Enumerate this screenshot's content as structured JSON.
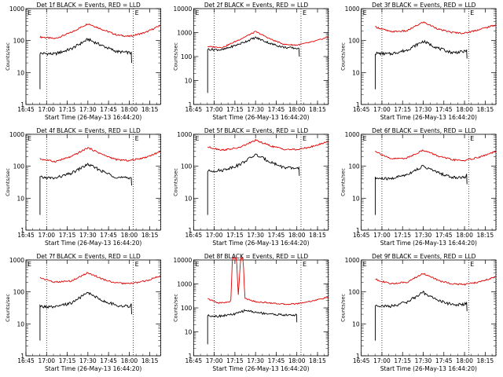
{
  "colors": {
    "events": "#000000",
    "lld": "#e00000",
    "axis": "#000000"
  },
  "chart_data": [
    {
      "type": "line",
      "title": "Det 1f BLACK = Events, RED = LLD",
      "xlabel": "Start Time (26-May-13 16:44:20)",
      "ylabel": "Counts/sec",
      "yscale": "log",
      "ylim": [
        1,
        1000
      ],
      "ytick_labels": [
        "1",
        "10",
        "100",
        "1000"
      ],
      "xtick_labels": [
        "16:45",
        "17:00",
        "17:15",
        "17:30",
        "17:45",
        "18:00",
        "18:15"
      ],
      "xlim_minutes": [
        16.75,
        18.38
      ],
      "marker_lines": [
        "17:00",
        "18:03",
        "18:23"
      ],
      "marker_label": "E",
      "series": [
        {
          "name": "LLD",
          "x": [
            16.92,
            17.1,
            17.3,
            17.5,
            17.7,
            17.85,
            18.0,
            18.2,
            18.38
          ],
          "values": [
            130,
            115,
            180,
            340,
            210,
            150,
            135,
            180,
            300
          ]
        },
        {
          "name": "Events",
          "x": [
            16.92,
            17.1,
            17.3,
            17.5,
            17.7,
            17.85,
            18.0,
            18.03
          ],
          "values": [
            40,
            38,
            55,
            110,
            65,
            45,
            42,
            40
          ]
        }
      ]
    },
    {
      "type": "line",
      "title": "Det 2f BLACK = Events, RED = LLD",
      "xlabel": "Start Time (26-May-13 16:44:20)",
      "ylabel": "Counts/sec",
      "yscale": "log",
      "ylim": [
        1,
        10000
      ],
      "ytick_labels": [
        "1",
        "10",
        "100",
        "1000",
        "10000"
      ],
      "xtick_labels": [
        "16:45",
        "17:00",
        "17:15",
        "17:30",
        "17:45",
        "18:00",
        "18:15"
      ],
      "xlim_minutes": [
        16.75,
        18.38
      ],
      "marker_lines": [
        "17:00",
        "18:03",
        "18:23"
      ],
      "marker_label": "E",
      "series": [
        {
          "name": "LLD",
          "x": [
            16.92,
            17.1,
            17.3,
            17.5,
            17.7,
            17.85,
            18.0,
            18.2,
            18.38
          ],
          "values": [
            260,
            240,
            500,
            1100,
            500,
            320,
            300,
            420,
            650
          ]
        },
        {
          "name": "Events",
          "x": [
            16.92,
            17.1,
            17.3,
            17.5,
            17.7,
            17.85,
            18.0,
            18.03
          ],
          "values": [
            200,
            190,
            330,
            620,
            330,
            240,
            220,
            200
          ]
        }
      ]
    },
    {
      "type": "line",
      "title": "Det 3f BLACK = Events, RED = LLD",
      "xlabel": "Start Time (26-May-13 16:44:20)",
      "ylabel": "Counts/sec",
      "yscale": "log",
      "ylim": [
        1,
        1000
      ],
      "ytick_labels": [
        "1",
        "10",
        "100",
        "1000"
      ],
      "xtick_labels": [
        "16:45",
        "17:00",
        "17:15",
        "17:30",
        "17:45",
        "18:00",
        "18:15"
      ],
      "xlim_minutes": [
        16.75,
        18.38
      ],
      "marker_lines": [
        "17:00",
        "18:03",
        "18:23"
      ],
      "marker_label": "E",
      "series": [
        {
          "name": "LLD",
          "x": [
            16.92,
            17.1,
            17.3,
            17.5,
            17.7,
            17.85,
            18.0,
            18.2,
            18.38
          ],
          "values": [
            270,
            190,
            200,
            380,
            220,
            180,
            170,
            230,
            310
          ]
        },
        {
          "name": "Events",
          "x": [
            16.92,
            17.1,
            17.3,
            17.5,
            17.7,
            17.85,
            18.0,
            18.03
          ],
          "values": [
            40,
            38,
            50,
            95,
            55,
            42,
            45,
            55
          ]
        }
      ]
    },
    {
      "type": "line",
      "title": "Det 4f BLACK = Events, RED = LLD",
      "xlabel": "Start Time (26-May-13 16:44:20)",
      "ylabel": "Counts/sec",
      "yscale": "log",
      "ylim": [
        1,
        1000
      ],
      "ytick_labels": [
        "1",
        "10",
        "100",
        "1000"
      ],
      "xtick_labels": [
        "16:45",
        "17:00",
        "17:15",
        "17:30",
        "17:45",
        "18:00",
        "18:15"
      ],
      "xlim_minutes": [
        16.75,
        18.38
      ],
      "marker_lines": [
        "17:00",
        "18:03",
        "18:23"
      ],
      "marker_label": "E",
      "series": [
        {
          "name": "LLD",
          "x": [
            16.92,
            17.1,
            17.3,
            17.5,
            17.7,
            17.85,
            18.0,
            18.2,
            18.38
          ],
          "values": [
            170,
            140,
            200,
            380,
            220,
            160,
            150,
            190,
            290
          ]
        },
        {
          "name": "Events",
          "x": [
            16.92,
            17.1,
            17.3,
            17.5,
            17.7,
            17.85,
            18.0,
            18.03
          ],
          "values": [
            45,
            42,
            60,
            115,
            65,
            45,
            42,
            50
          ]
        }
      ]
    },
    {
      "type": "line",
      "title": "Det 5f BLACK = Events, RED = LLD",
      "xlabel": "Start Time (26-May-13 16:44:20)",
      "ylabel": "Counts/sec",
      "yscale": "log",
      "ylim": [
        1,
        1000
      ],
      "ytick_labels": [
        "1",
        "10",
        "100",
        "1000"
      ],
      "xtick_labels": [
        "16:45",
        "17:00",
        "17:15",
        "17:30",
        "17:45",
        "18:00",
        "18:15"
      ],
      "xlim_minutes": [
        16.75,
        18.38
      ],
      "marker_lines": [
        "17:00",
        "18:03",
        "18:23"
      ],
      "marker_label": "E",
      "series": [
        {
          "name": "LLD",
          "x": [
            16.92,
            17.1,
            17.3,
            17.5,
            17.7,
            17.85,
            18.0,
            18.2,
            18.38
          ],
          "values": [
            400,
            320,
            380,
            650,
            420,
            340,
            330,
            420,
            600
          ]
        },
        {
          "name": "Events",
          "x": [
            16.92,
            17.1,
            17.3,
            17.5,
            17.7,
            17.85,
            18.0,
            18.03
          ],
          "values": [
            70,
            75,
            110,
            230,
            130,
            90,
            85,
            100
          ]
        }
      ]
    },
    {
      "type": "line",
      "title": "Det 6f BLACK = Events, RED = LLD",
      "xlabel": "Start Time (26-May-13 16:44:20)",
      "ylabel": "Counts/sec",
      "yscale": "log",
      "ylim": [
        1,
        1000
      ],
      "ytick_labels": [
        "1",
        "10",
        "100",
        "1000"
      ],
      "xtick_labels": [
        "16:45",
        "17:00",
        "17:15",
        "17:30",
        "17:45",
        "18:00",
        "18:15"
      ],
      "xlim_minutes": [
        16.75,
        18.38
      ],
      "marker_lines": [
        "17:00",
        "18:03",
        "18:23"
      ],
      "marker_label": "E",
      "series": [
        {
          "name": "LLD",
          "x": [
            16.92,
            17.1,
            17.3,
            17.5,
            17.7,
            17.85,
            18.0,
            18.2,
            18.38
          ],
          "values": [
            300,
            170,
            180,
            320,
            200,
            160,
            150,
            200,
            290
          ]
        },
        {
          "name": "Events",
          "x": [
            16.92,
            17.1,
            17.3,
            17.5,
            17.7,
            17.85,
            18.0,
            18.03
          ],
          "values": [
            42,
            40,
            55,
            100,
            60,
            45,
            45,
            55
          ]
        }
      ]
    },
    {
      "type": "line",
      "title": "Det 7f BLACK = Events, RED = LLD",
      "xlabel": "Start Time (26-May-13 16:44:20)",
      "ylabel": "Counts/sec",
      "yscale": "log",
      "ylim": [
        1,
        1000
      ],
      "ytick_labels": [
        "1",
        "10",
        "100",
        "1000"
      ],
      "xtick_labels": [
        "16:45",
        "17:00",
        "17:15",
        "17:30",
        "17:45",
        "18:00",
        "18:15"
      ],
      "xlim_minutes": [
        16.75,
        18.38
      ],
      "marker_lines": [
        "17:00",
        "18:03",
        "18:23"
      ],
      "marker_label": "E",
      "series": [
        {
          "name": "LLD",
          "x": [
            16.92,
            17.1,
            17.3,
            17.5,
            17.7,
            17.85,
            18.0,
            18.2,
            18.38
          ],
          "values": [
            280,
            200,
            220,
            400,
            240,
            190,
            180,
            220,
            320
          ]
        },
        {
          "name": "Events",
          "x": [
            16.92,
            17.1,
            17.3,
            17.5,
            17.7,
            17.85,
            18.0,
            18.03
          ],
          "values": [
            35,
            33,
            45,
            95,
            50,
            38,
            35,
            40
          ]
        }
      ]
    },
    {
      "type": "line",
      "title": "Det 8f BLACK = Events, RED = LLD",
      "xlabel": "Start Time (26-May-13 16:44:20)",
      "ylabel": "Counts/sec",
      "yscale": "log",
      "ylim": [
        1,
        10000
      ],
      "ytick_labels": [
        "1",
        "10",
        "100",
        "1000",
        "10000"
      ],
      "xtick_labels": [
        "16:45",
        "17:00",
        "17:15",
        "17:30",
        "17:45",
        "18:00",
        "18:15"
      ],
      "xlim_minutes": [
        16.75,
        18.38
      ],
      "marker_lines": [
        "17:00",
        "18:03",
        "18:23"
      ],
      "marker_label": "E",
      "series": [
        {
          "name": "LLD",
          "x": [
            16.92,
            17.05,
            17.2,
            17.22,
            17.27,
            17.29,
            17.32,
            17.35,
            17.37,
            17.5,
            17.7,
            17.85,
            18.0,
            18.2,
            18.38
          ],
          "values": [
            240,
            160,
            180,
            12000,
            12000,
            300,
            12000,
            12000,
            250,
            180,
            160,
            140,
            150,
            200,
            280
          ]
        },
        {
          "name": "Events",
          "x": [
            16.92,
            17.05,
            17.25,
            17.38,
            17.5,
            17.7,
            17.85,
            18.0
          ],
          "values": [
            48,
            45,
            55,
            80,
            65,
            55,
            50,
            50
          ]
        }
      ]
    },
    {
      "type": "line",
      "title": "Det 9f BLACK = Events, RED = LLD",
      "xlabel": "Start Time (26-May-13 16:44:20)",
      "ylabel": "Counts/sec",
      "yscale": "log",
      "ylim": [
        1,
        1000
      ],
      "ytick_labels": [
        "1",
        "10",
        "100",
        "1000"
      ],
      "xtick_labels": [
        "16:45",
        "17:00",
        "17:15",
        "17:30",
        "17:45",
        "18:00",
        "18:15"
      ],
      "xlim_minutes": [
        16.75,
        18.38
      ],
      "marker_lines": [
        "17:00",
        "18:03",
        "18:23"
      ],
      "marker_label": "E",
      "series": [
        {
          "name": "LLD",
          "x": [
            16.92,
            17.1,
            17.3,
            17.5,
            17.7,
            17.85,
            18.0,
            18.2,
            18.38
          ],
          "values": [
            250,
            180,
            200,
            380,
            220,
            180,
            170,
            210,
            300
          ]
        },
        {
          "name": "Events",
          "x": [
            16.92,
            17.1,
            17.3,
            17.5,
            17.7,
            17.85,
            18.0,
            18.03
          ],
          "values": [
            38,
            35,
            48,
            95,
            52,
            40,
            40,
            50
          ]
        }
      ]
    }
  ]
}
